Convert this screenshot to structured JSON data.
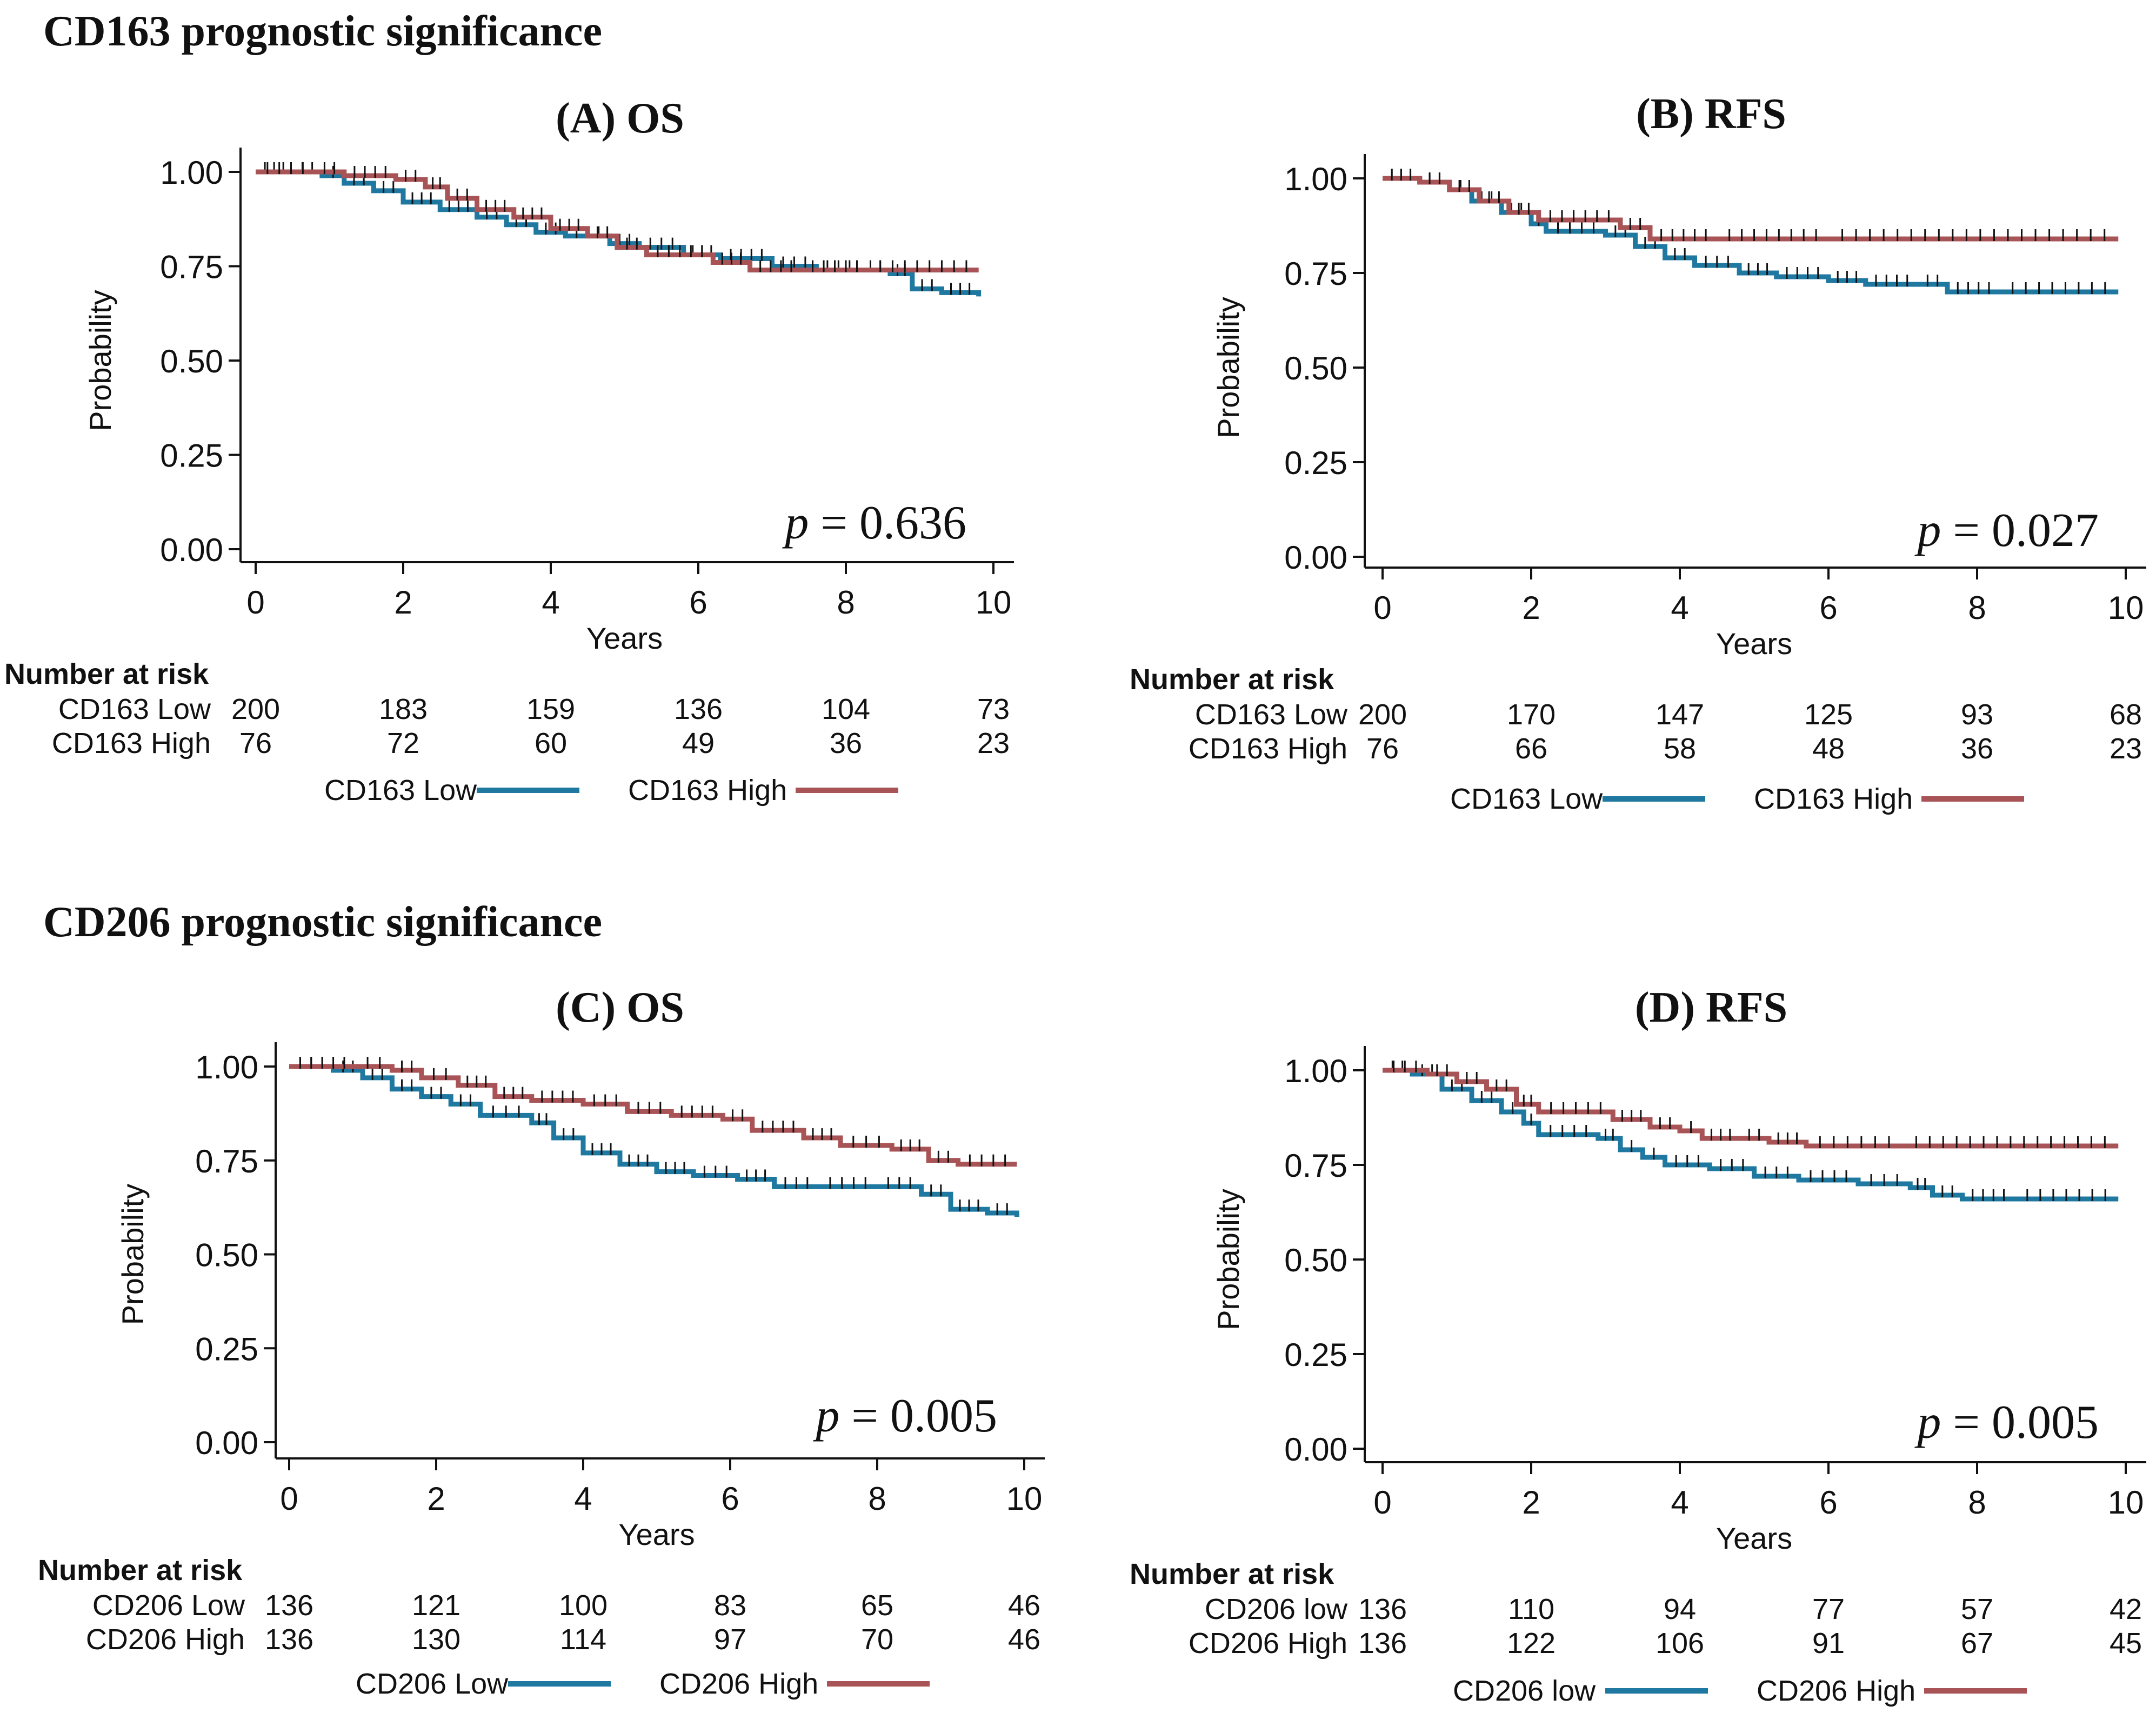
{
  "colors": {
    "low": "#1f78a0",
    "high": "#a85457",
    "ink": "#111111",
    "censor": "#111111"
  },
  "section_titles": [
    "CD163 prognostic significance",
    "CD206 prognostic significance"
  ],
  "axis": {
    "xlabel": "Years",
    "ylabel": "Probability",
    "risk_header": "Number at risk",
    "p_symbol": "p"
  },
  "chart_data": [
    {
      "type": "line",
      "title": "(A) OS",
      "xlabel": "Years",
      "ylabel": "Probability",
      "xlim": [
        0,
        10
      ],
      "ylim": [
        0,
        1
      ],
      "xticks": [
        "0",
        "2",
        "4",
        "6",
        "8",
        "10"
      ],
      "yticks": [
        "0.00",
        "0.25",
        "0.50",
        "0.75",
        "1.00"
      ],
      "p_value": "= 0.636",
      "risk_times": [
        0,
        2,
        4,
        6,
        8,
        10
      ],
      "series": [
        {
          "name": "CD163 Low",
          "risk_label": "CD163 Low",
          "risk": [
            "200",
            "183",
            "159",
            "136",
            "104",
            "73"
          ],
          "points": [
            [
              0,
              1
            ],
            [
              0.5,
              1
            ],
            [
              0.9,
              0.99
            ],
            [
              1.2,
              0.97
            ],
            [
              1.6,
              0.95
            ],
            [
              2.0,
              0.92
            ],
            [
              2.5,
              0.9
            ],
            [
              3.0,
              0.88
            ],
            [
              3.4,
              0.86
            ],
            [
              3.8,
              0.84
            ],
            [
              4.2,
              0.83
            ],
            [
              4.8,
              0.81
            ],
            [
              5.2,
              0.8
            ],
            [
              5.8,
              0.78
            ],
            [
              6.3,
              0.77
            ],
            [
              7.0,
              0.75
            ],
            [
              7.6,
              0.74
            ],
            [
              8.2,
              0.74
            ],
            [
              8.6,
              0.73
            ],
            [
              8.9,
              0.69
            ],
            [
              9.3,
              0.68
            ],
            [
              9.8,
              0.67
            ]
          ]
        },
        {
          "name": "CD163 High",
          "risk_label": "CD163 High",
          "risk": [
            "76",
            "72",
            "60",
            "49",
            "36",
            "23"
          ],
          "points": [
            [
              0,
              1
            ],
            [
              0.8,
              1
            ],
            [
              1.2,
              0.99
            ],
            [
              1.9,
              0.98
            ],
            [
              2.3,
              0.96
            ],
            [
              2.6,
              0.93
            ],
            [
              3.0,
              0.9
            ],
            [
              3.5,
              0.88
            ],
            [
              4.0,
              0.85
            ],
            [
              4.5,
              0.83
            ],
            [
              4.9,
              0.8
            ],
            [
              5.3,
              0.78
            ],
            [
              6.2,
              0.76
            ],
            [
              6.7,
              0.74
            ],
            [
              7.4,
              0.74
            ],
            [
              8.3,
              0.74
            ],
            [
              9.8,
              0.74
            ]
          ]
        }
      ]
    },
    {
      "type": "line",
      "title": "(B) RFS",
      "xlabel": "Years",
      "ylabel": "Probability",
      "xlim": [
        0,
        10
      ],
      "ylim": [
        0,
        1
      ],
      "xticks": [
        "0",
        "2",
        "4",
        "6",
        "8",
        "10"
      ],
      "yticks": [
        "0.00",
        "0.25",
        "0.50",
        "0.75",
        "1.00"
      ],
      "p_value": "= 0.027",
      "risk_times": [
        0,
        2,
        4,
        6,
        8,
        10
      ],
      "series": [
        {
          "name": "CD163 Low",
          "risk_label": "CD163 Low",
          "risk": [
            "200",
            "170",
            "147",
            "125",
            "93",
            "68"
          ],
          "points": [
            [
              0,
              1
            ],
            [
              0.5,
              0.99
            ],
            [
              0.9,
              0.97
            ],
            [
              1.2,
              0.94
            ],
            [
              1.6,
              0.91
            ],
            [
              2.0,
              0.88
            ],
            [
              2.2,
              0.86
            ],
            [
              3.0,
              0.85
            ],
            [
              3.4,
              0.82
            ],
            [
              3.8,
              0.79
            ],
            [
              4.2,
              0.77
            ],
            [
              4.8,
              0.75
            ],
            [
              5.3,
              0.74
            ],
            [
              6.0,
              0.73
            ],
            [
              6.5,
              0.72
            ],
            [
              7.2,
              0.72
            ],
            [
              7.6,
              0.7
            ],
            [
              8.3,
              0.7
            ],
            [
              9.9,
              0.7
            ]
          ]
        },
        {
          "name": "CD163 High",
          "risk_label": "CD163 High",
          "risk": [
            "76",
            "66",
            "58",
            "48",
            "36",
            "23"
          ],
          "points": [
            [
              0,
              1
            ],
            [
              0.5,
              0.99
            ],
            [
              0.9,
              0.97
            ],
            [
              1.3,
              0.94
            ],
            [
              1.7,
              0.91
            ],
            [
              2.1,
              0.89
            ],
            [
              3.2,
              0.87
            ],
            [
              3.6,
              0.84
            ],
            [
              4.5,
              0.84
            ],
            [
              6.0,
              0.84
            ],
            [
              9.9,
              0.84
            ]
          ]
        }
      ]
    },
    {
      "type": "line",
      "title": "(C) OS",
      "xlabel": "Years",
      "ylabel": "Probability",
      "xlim": [
        0,
        10
      ],
      "ylim": [
        0,
        1
      ],
      "xticks": [
        "0",
        "2",
        "4",
        "6",
        "8",
        "10"
      ],
      "yticks": [
        "0.00",
        "0.25",
        "0.50",
        "0.75",
        "1.00"
      ],
      "p_value": "= 0.005",
      "risk_times": [
        0,
        2,
        4,
        6,
        8,
        10
      ],
      "series": [
        {
          "name": "CD206 Low",
          "risk_label": "CD206 Low",
          "risk": [
            "136",
            "121",
            "100",
            "83",
            "65",
            "46"
          ],
          "points": [
            [
              0,
              1
            ],
            [
              0.6,
              0.99
            ],
            [
              1.0,
              0.97
            ],
            [
              1.4,
              0.94
            ],
            [
              1.8,
              0.92
            ],
            [
              2.2,
              0.9
            ],
            [
              2.6,
              0.87
            ],
            [
              3.3,
              0.85
            ],
            [
              3.6,
              0.81
            ],
            [
              4.0,
              0.77
            ],
            [
              4.5,
              0.74
            ],
            [
              5.0,
              0.72
            ],
            [
              5.5,
              0.71
            ],
            [
              6.1,
              0.7
            ],
            [
              6.6,
              0.68
            ],
            [
              7.2,
              0.68
            ],
            [
              8.0,
              0.68
            ],
            [
              8.6,
              0.66
            ],
            [
              9.0,
              0.62
            ],
            [
              9.5,
              0.61
            ],
            [
              9.9,
              0.6
            ]
          ]
        },
        {
          "name": "CD206 High",
          "risk_label": "CD206 High",
          "risk": [
            "136",
            "130",
            "114",
            "97",
            "70",
            "46"
          ],
          "points": [
            [
              0,
              1
            ],
            [
              0.9,
              1
            ],
            [
              1.4,
              0.99
            ],
            [
              1.8,
              0.97
            ],
            [
              2.3,
              0.95
            ],
            [
              2.8,
              0.92
            ],
            [
              3.3,
              0.91
            ],
            [
              4.0,
              0.9
            ],
            [
              4.6,
              0.88
            ],
            [
              5.2,
              0.87
            ],
            [
              5.9,
              0.86
            ],
            [
              6.3,
              0.83
            ],
            [
              7.0,
              0.81
            ],
            [
              7.5,
              0.79
            ],
            [
              8.2,
              0.78
            ],
            [
              8.7,
              0.75
            ],
            [
              9.1,
              0.74
            ],
            [
              9.9,
              0.74
            ]
          ]
        }
      ]
    },
    {
      "type": "line",
      "title": "(D) RFS",
      "xlabel": "Years",
      "ylabel": "Probability",
      "xlim": [
        0,
        10
      ],
      "ylim": [
        0,
        1
      ],
      "xticks": [
        "0",
        "2",
        "4",
        "6",
        "8",
        "10"
      ],
      "yticks": [
        "0.00",
        "0.25",
        "0.50",
        "0.75",
        "1.00"
      ],
      "p_value": "= 0.005",
      "risk_times": [
        0,
        2,
        4,
        6,
        8,
        10
      ],
      "series": [
        {
          "name": "CD206 low",
          "risk_label": "CD206 low",
          "risk": [
            "136",
            "110",
            "94",
            "77",
            "57",
            "42"
          ],
          "points": [
            [
              0,
              1
            ],
            [
              0.4,
              0.99
            ],
            [
              0.8,
              0.95
            ],
            [
              1.2,
              0.92
            ],
            [
              1.6,
              0.89
            ],
            [
              1.9,
              0.86
            ],
            [
              2.1,
              0.83
            ],
            [
              2.9,
              0.82
            ],
            [
              3.2,
              0.79
            ],
            [
              3.5,
              0.77
            ],
            [
              3.8,
              0.75
            ],
            [
              4.4,
              0.74
            ],
            [
              5.0,
              0.72
            ],
            [
              5.6,
              0.71
            ],
            [
              6.4,
              0.7
            ],
            [
              7.1,
              0.69
            ],
            [
              7.4,
              0.67
            ],
            [
              7.8,
              0.66
            ],
            [
              8.5,
              0.66
            ],
            [
              9.9,
              0.66
            ]
          ]
        },
        {
          "name": "CD206 High",
          "risk_label": "CD206 High",
          "risk": [
            "136",
            "122",
            "106",
            "91",
            "67",
            "45"
          ],
          "points": [
            [
              0,
              1
            ],
            [
              0.6,
              0.99
            ],
            [
              1.0,
              0.97
            ],
            [
              1.4,
              0.95
            ],
            [
              1.8,
              0.91
            ],
            [
              2.1,
              0.89
            ],
            [
              3.1,
              0.87
            ],
            [
              3.6,
              0.85
            ],
            [
              4.0,
              0.84
            ],
            [
              4.3,
              0.82
            ],
            [
              4.8,
              0.82
            ],
            [
              5.2,
              0.81
            ],
            [
              5.7,
              0.8
            ],
            [
              7.0,
              0.8
            ],
            [
              9.9,
              0.8
            ]
          ]
        }
      ]
    }
  ]
}
